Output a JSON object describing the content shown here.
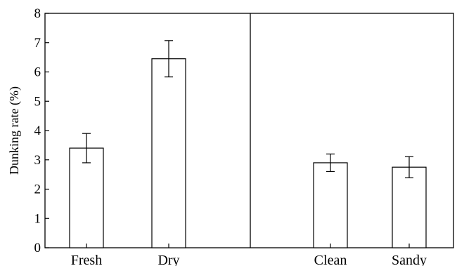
{
  "chart_data": {
    "type": "bar",
    "title": "",
    "xlabel": "",
    "ylabel": "Dunking rate (%)",
    "ylim": [
      0,
      8
    ],
    "yticks": [
      0,
      1,
      2,
      3,
      4,
      5,
      6,
      7,
      8
    ],
    "grid": false,
    "legend": "none",
    "panels": [
      {
        "categories": [
          "Fresh",
          "Dry"
        ],
        "values": [
          3.4,
          6.45
        ],
        "error": [
          0.5,
          0.62
        ]
      },
      {
        "categories": [
          "Clean",
          "Sandy"
        ],
        "values": [
          2.9,
          2.75
        ],
        "error": [
          0.3,
          0.36
        ]
      }
    ],
    "colors": {
      "bar_fill": "#ffffff",
      "stroke": "#000000"
    }
  }
}
